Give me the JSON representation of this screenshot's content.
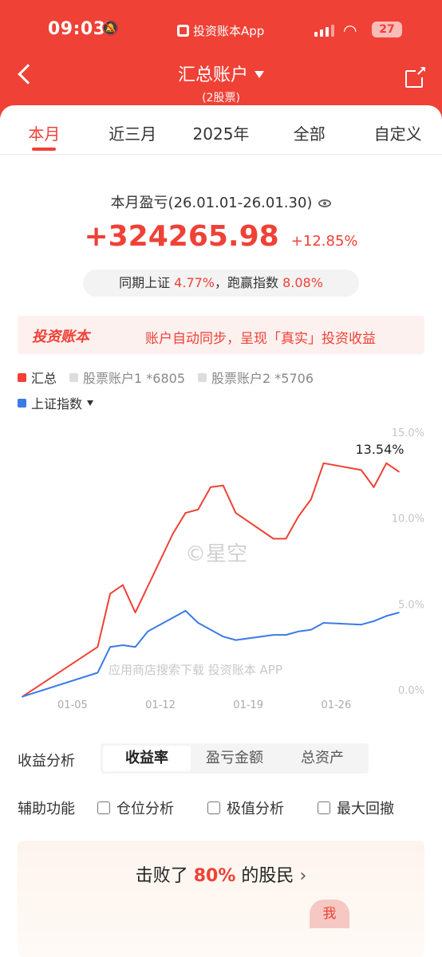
{
  "status_bar": {
    "time": "09:03",
    "app": "投资账本App",
    "battery": "27"
  },
  "header": {
    "title": "汇总账户",
    "subtitle": "(2股票)"
  },
  "tabs": [
    "本月",
    "近三月",
    "2025年",
    "全部",
    "自定义"
  ],
  "summary": {
    "period": "本月盈亏(26.01.01-26.01.30)",
    "profit": "+324265.98",
    "profit_pct": "+12.85%",
    "compare_prefix": "同期上证",
    "compare_value": "4.77%",
    "compare_mid": "，跑赢指数",
    "compare_beat": "8.08%"
  },
  "banner": {
    "logo": "投资账本",
    "text": "账户自动同步，呈现「真实」投资收益"
  },
  "legend": {
    "items": [
      {
        "label": "汇总",
        "color": "#ef4136"
      },
      {
        "label": "股票账户1 *6805",
        "color": "#dddddd"
      },
      {
        "label": "股票账户2 *5706",
        "color": "#dddddd"
      }
    ],
    "index": {
      "label": "上证指数",
      "color": "#3b7ae8"
    }
  },
  "chart_data": {
    "type": "line",
    "x_ticks": [
      "01-05",
      "01-12",
      "01-19",
      "01-26"
    ],
    "y_ticks": [
      "0.0%",
      "5.0%",
      "10.0%",
      "15.0%"
    ],
    "ylim": [
      0,
      15
    ],
    "grid": false,
    "peak_label": "13.54%",
    "series": [
      {
        "name": "汇总",
        "color": "#ef4136",
        "points": [
          [
            0,
            -0.4
          ],
          [
            6,
            2.5
          ],
          [
            7,
            5.6
          ],
          [
            8,
            6.1
          ],
          [
            9,
            4.5
          ],
          [
            12,
            9.1
          ],
          [
            13,
            10.3
          ],
          [
            14,
            10.5
          ],
          [
            15,
            11.8
          ],
          [
            16,
            11.9
          ],
          [
            17,
            10.3
          ],
          [
            20,
            8.8
          ],
          [
            21,
            8.8
          ],
          [
            22,
            10.1
          ],
          [
            23,
            11.1
          ],
          [
            24,
            13.2
          ],
          [
            27,
            12.8
          ],
          [
            28,
            11.8
          ],
          [
            29,
            13.2
          ],
          [
            30,
            12.7
          ]
        ]
      },
      {
        "name": "上证指数",
        "color": "#3b7ae8",
        "points": [
          [
            0,
            -0.4
          ],
          [
            6,
            1.0
          ],
          [
            7,
            2.5
          ],
          [
            8,
            2.6
          ],
          [
            9,
            2.5
          ],
          [
            10,
            3.4
          ],
          [
            13,
            4.6
          ],
          [
            14,
            3.9
          ],
          [
            16,
            3.1
          ],
          [
            17,
            2.9
          ],
          [
            20,
            3.2
          ],
          [
            21,
            3.2
          ],
          [
            22,
            3.4
          ],
          [
            23,
            3.5
          ],
          [
            24,
            3.9
          ],
          [
            27,
            3.8
          ],
          [
            28,
            4.0
          ],
          [
            29,
            4.3
          ],
          [
            30,
            4.5
          ]
        ]
      }
    ]
  },
  "watermark": "©星空",
  "watermark2": "应用商店搜索下载 投资账本 APP",
  "analysis": {
    "label": "收益分析",
    "options": [
      "收益率",
      "盈亏金额",
      "总资产"
    ]
  },
  "aux": {
    "label": "辅助功能",
    "options": [
      "仓位分析",
      "极值分析",
      "最大回撤"
    ]
  },
  "beat": {
    "prefix": "击败了",
    "percent": "80%",
    "suffix": "的股民",
    "me": "我"
  }
}
